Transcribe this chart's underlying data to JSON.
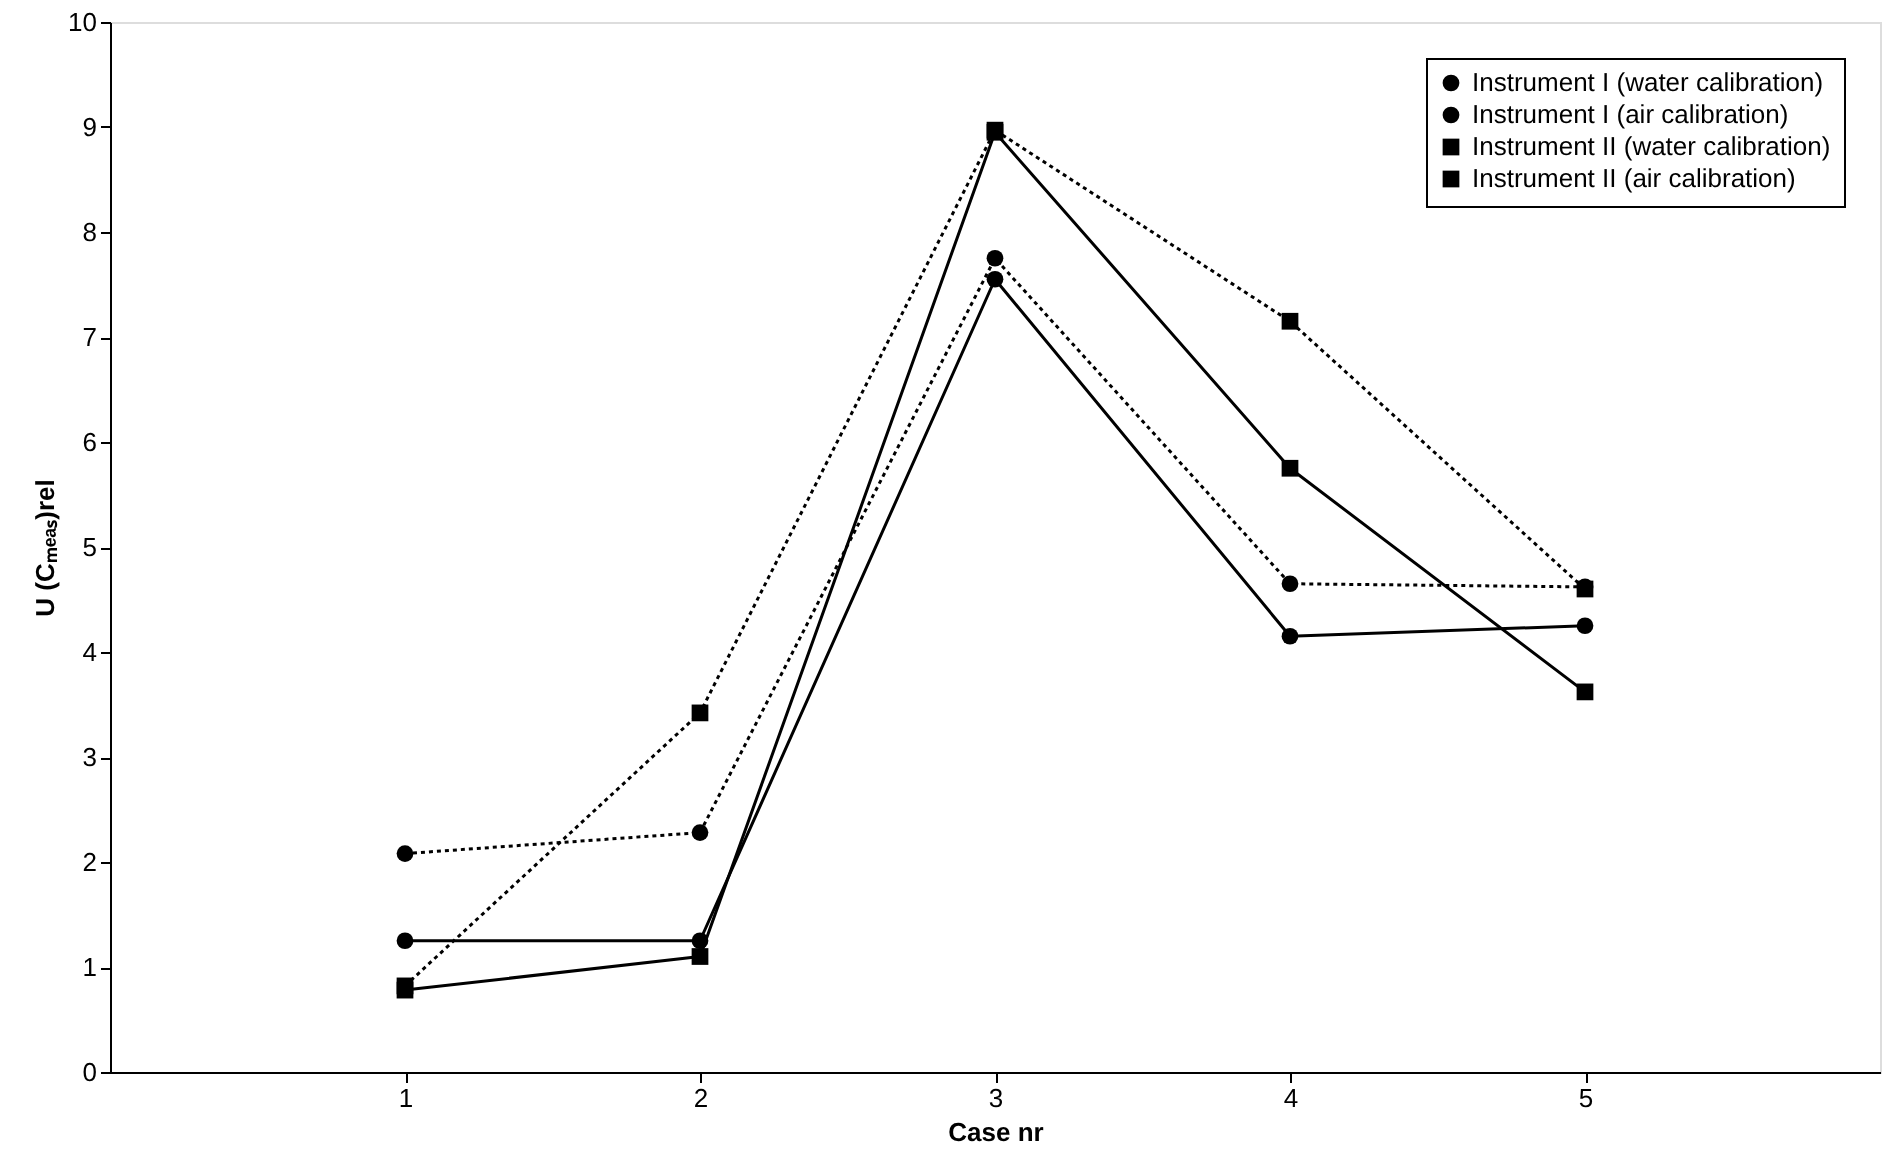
{
  "chart_data": {
    "type": "line",
    "xlabel": "Case nr",
    "ylabel": "U (Cₘₑₐₛ)rel",
    "x": [
      1,
      2,
      3,
      4,
      5
    ],
    "series": [
      {
        "name": "Instrument I (water calibration)",
        "color": "#000000",
        "marker": "circle",
        "line_style": "solid",
        "values": [
          1.25,
          1.25,
          7.55,
          4.15,
          4.25
        ]
      },
      {
        "name": "Instrument I (air calibration)",
        "color": "#000000",
        "marker": "circle",
        "line_style": "dotted",
        "values": [
          2.08,
          2.28,
          7.75,
          4.65,
          4.62
        ]
      },
      {
        "name": "Instrument II (water calibration)",
        "color": "#000000",
        "marker": "square",
        "line_style": "solid",
        "values": [
          0.78,
          1.1,
          8.95,
          5.75,
          3.62
        ]
      },
      {
        "name": "Instrument II (air calibration)",
        "color": "#000000",
        "marker": "square",
        "line_style": "dotted",
        "values": [
          0.82,
          3.42,
          8.97,
          7.15,
          4.6
        ]
      }
    ],
    "xlim": [
      0,
      6
    ],
    "xticks": [
      1,
      2,
      3,
      4,
      5
    ],
    "ylim": [
      0,
      10
    ],
    "yticks": [
      0,
      1,
      2,
      3,
      4,
      5,
      6,
      7,
      8,
      9,
      10
    ],
    "grid": false,
    "legend": "top right"
  }
}
